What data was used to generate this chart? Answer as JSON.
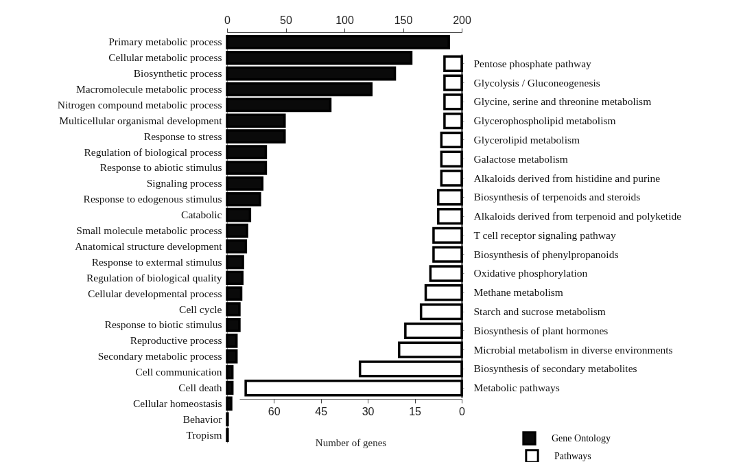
{
  "chart_data": [
    {
      "type": "bar",
      "orientation": "horizontal",
      "categories": [
        "Primary metabolic process",
        "Cellular metabolic process",
        "Biosynthetic process",
        "Macromolecule metabolic process",
        "Nitrogen compound metabolic process",
        "Multicellular organismal development",
        "Response to stress",
        "Regulation of biological process",
        "Response to abiotic stimulus",
        "Signaling process",
        "Response to edogenous stimulus",
        "Catabolic",
        "Small molecule metabolic process",
        "Anatomical structure development",
        "Response to extermal stimulus",
        "Regulation of biological quality",
        "Cellular developmental process",
        "Cell cycle",
        "Response to biotic stimulus",
        "Reproductive process",
        "Secondary metabolic process",
        "Cell communication",
        "Cell death",
        "Cellular homeostasis",
        "Behavior",
        "Tropism"
      ],
      "series": [
        {
          "name": "Gene Ontology",
          "color": "#0a0a0a",
          "axis": "x2",
          "values": [
            189,
            157,
            143,
            123,
            88,
            49,
            49,
            33,
            33,
            30,
            28,
            19.5,
            17,
            16,
            13.5,
            13,
            12,
            10.5,
            10.5,
            8,
            8,
            4.5,
            4.5,
            3.5,
            0.5,
            0.5
          ]
        }
      ],
      "x2lim": [
        0,
        200
      ],
      "x2ticks": [
        0,
        50,
        100,
        150,
        200
      ],
      "legend": "bottom right"
    },
    {
      "type": "bar",
      "orientation": "horizontal",
      "categories": [
        "Pentose phosphate pathway",
        "Glycolysis / Gluconeogenesis",
        "Glycine, serine and threonine metabolism",
        "Glycerophospholipid metabolism",
        "Glycerolipid metabolism",
        "Galactose metabolism",
        "Alkaloids derived from histidine and purine",
        "Biosynthesis of terpenoids and steroids",
        "Alkaloids derived from terpenoid and polyketide",
        "T cell receptor signaling pathway",
        "Biosynthesis of phenylpropanoids",
        "Oxidative phosphorylation",
        "Methane metabolism",
        "Starch and sucrose metabolism",
        "Biosynthesis of plant hormones",
        "Microbial metabolism in diverse environments",
        "Biosynthesis of secondary metabolites",
        "Metabolic pathways"
      ],
      "series": [
        {
          "name": "Pathways",
          "color": "#ffffff",
          "values": [
            5.5,
            5.5,
            5.5,
            5.5,
            6.5,
            6.5,
            6.5,
            7.5,
            7.5,
            9,
            9,
            10,
            11.5,
            13,
            18,
            20,
            32.5,
            69
          ]
        }
      ],
      "xlim": [
        71,
        0
      ],
      "xticks": [
        60,
        45,
        30,
        15,
        0
      ],
      "xlabel": "Number of genes",
      "legend": "bottom right"
    }
  ]
}
